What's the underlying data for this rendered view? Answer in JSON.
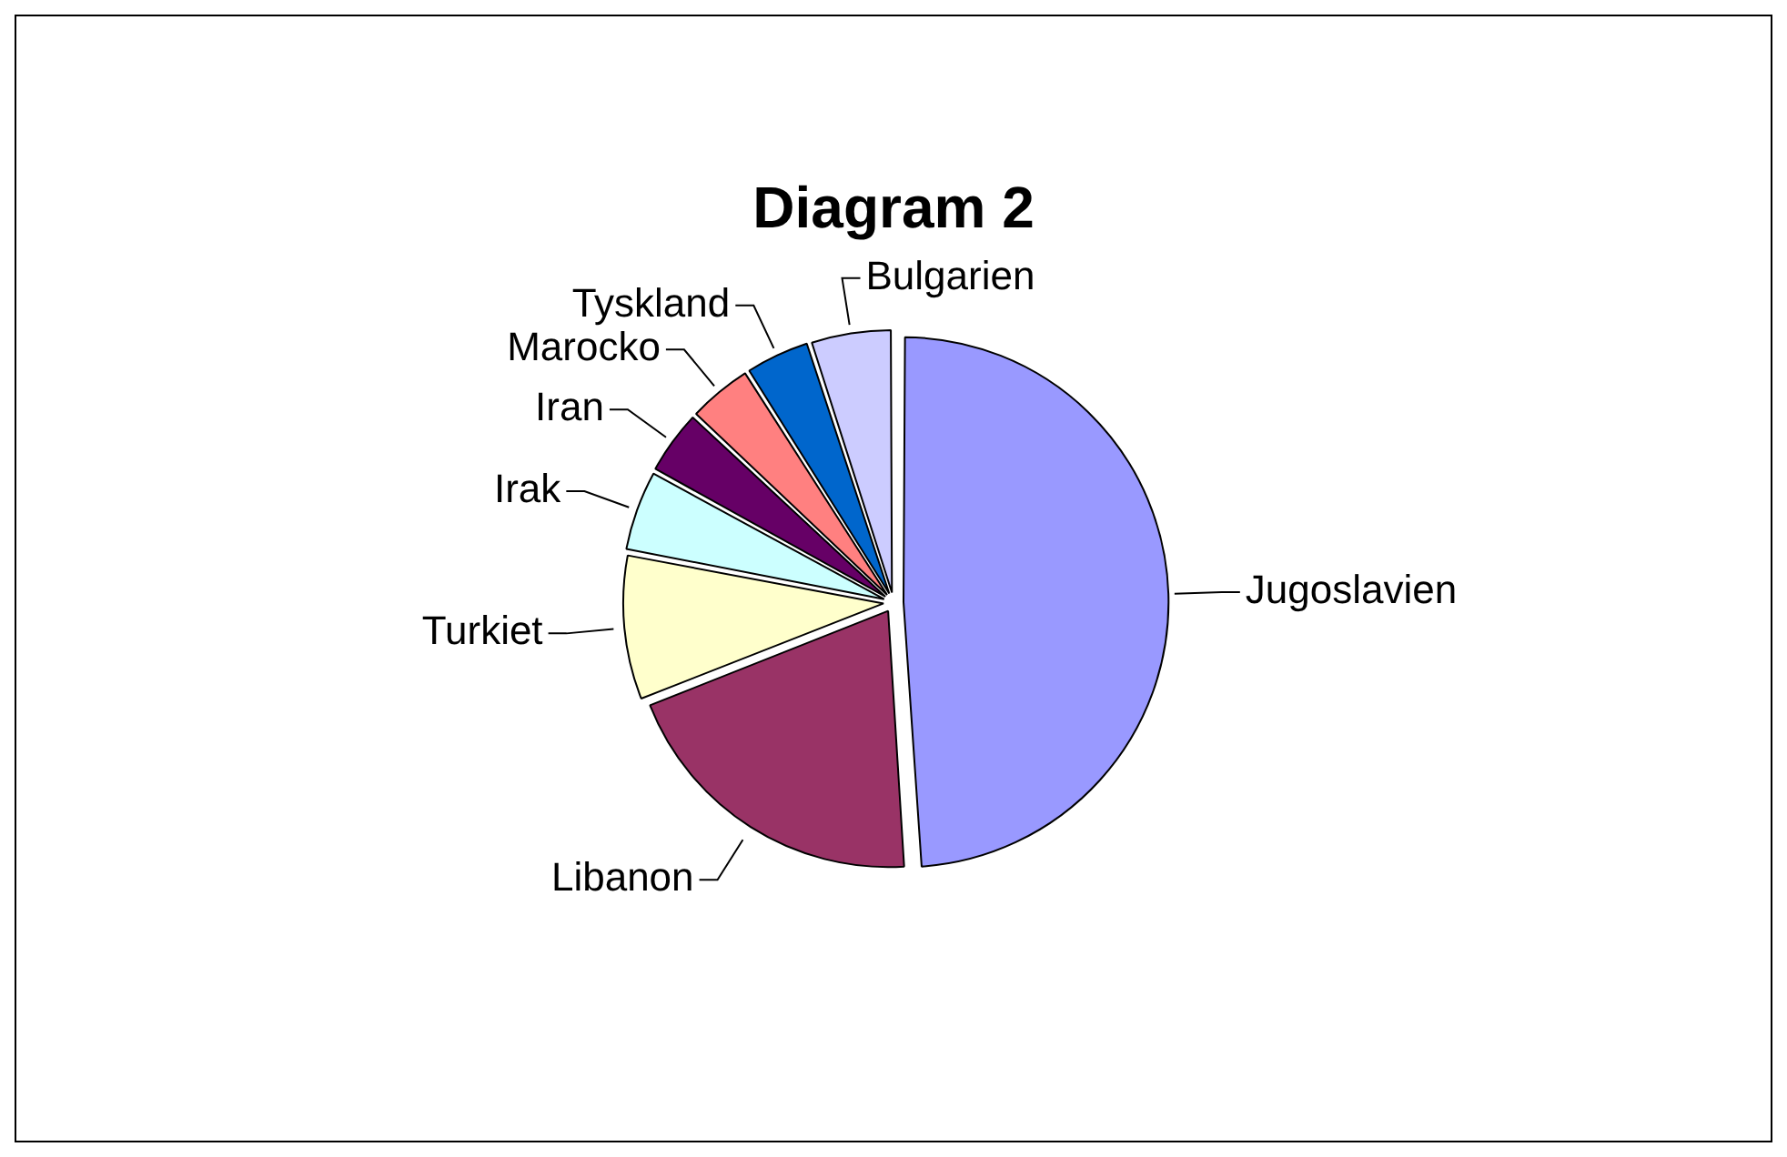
{
  "chart_data": {
    "type": "pie",
    "title": "Diagram 2",
    "categories": [
      "Jugoslavien",
      "Libanon",
      "Turkiet",
      "Irak",
      "Iran",
      "Marocko",
      "Tyskland",
      "Bulgarien"
    ],
    "values": [
      49,
      20,
      9,
      5,
      4,
      4,
      4,
      5
    ],
    "colors": [
      "#9999ff",
      "#993366",
      "#ffffcc",
      "#ccffff",
      "#660066",
      "#ff8080",
      "#0066cc",
      "#ccccff"
    ],
    "legend": false
  }
}
